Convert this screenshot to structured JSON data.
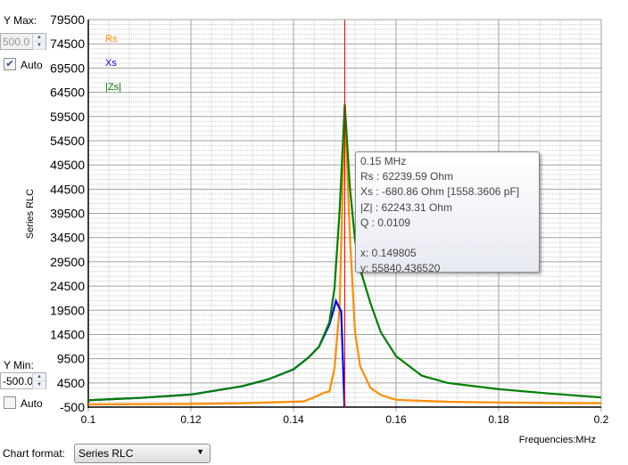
{
  "controls": {
    "ymax_label": "Y Max:",
    "ymax_value": "500.0",
    "ymax_auto_label": "Auto",
    "ymax_auto_checked": true,
    "ymin_label": "Y Min:",
    "ymin_value": "-500.0",
    "ymin_auto_label": "Auto",
    "ymin_auto_checked": false,
    "chart_format_label": "Chart format:",
    "chart_format_value": "Series RLC"
  },
  "tooltip": {
    "freq": "0.15 MHz",
    "rs": "Rs :  62239.59 Ohm",
    "xs": "Xs :  -680.86 Ohm [1558.3606 pF]",
    "z": "|Z| :  62243.31 Ohm",
    "q": "Q :  0.0109",
    "x": "x: 0.149805",
    "y": "y: 55840.436520"
  },
  "chart_data": {
    "type": "line",
    "ylabel": "Series RLC",
    "xlabel": "Frequencies:MHz",
    "xlim": [
      0.1,
      0.2
    ],
    "ylim": [
      -500,
      79500
    ],
    "x_ticks": [
      "0.1",
      "0.12",
      "0.14",
      "0.16",
      "0.18",
      "0.2"
    ],
    "y_ticks": [
      "79500",
      "74500",
      "69500",
      "64500",
      "59500",
      "54500",
      "49500",
      "44500",
      "39500",
      "34500",
      "29500",
      "24500",
      "19500",
      "14500",
      "9500",
      "4500",
      "-500"
    ],
    "grid": true,
    "legend_position": "top-left",
    "cursor_x": 0.15,
    "colors": {
      "Rs": "#ff8c00",
      "Xs": "#0000ff",
      "Zs": "#008000",
      "cursor": "#ff0000"
    },
    "series": [
      {
        "name": "Rs",
        "color": "#ff8c00",
        "x": [
          0.1,
          0.12,
          0.13,
          0.14,
          0.142,
          0.144,
          0.146,
          0.147,
          0.148,
          0.149,
          0.15,
          0.151,
          0.152,
          0.153,
          0.155,
          0.157,
          0.16,
          0.17,
          0.18,
          0.19,
          0.2
        ],
        "y": [
          50,
          150,
          300,
          600,
          700,
          1500,
          2500,
          2700,
          7500,
          20000,
          62000,
          35000,
          15000,
          8000,
          3500,
          2000,
          1000,
          600,
          450,
          350,
          300
        ]
      },
      {
        "name": "Xs",
        "color": "#0000ff",
        "x": [
          0.1,
          0.11,
          0.12,
          0.13,
          0.135,
          0.14,
          0.143,
          0.145,
          0.147,
          0.1483,
          0.1493,
          0.15
        ],
        "y": [
          920,
          1400,
          2100,
          3800,
          5200,
          7300,
          9800,
          12000,
          16500,
          21400,
          19200,
          -2000
        ]
      },
      {
        "name": "|Zs|",
        "color": "#008000",
        "x": [
          0.1,
          0.11,
          0.12,
          0.13,
          0.135,
          0.14,
          0.143,
          0.145,
          0.147,
          0.148,
          0.149,
          0.15,
          0.151,
          0.152,
          0.153,
          0.155,
          0.157,
          0.16,
          0.165,
          0.17,
          0.18,
          0.19,
          0.2
        ],
        "y": [
          920,
          1400,
          2100,
          3800,
          5200,
          7300,
          9800,
          12000,
          17000,
          24000,
          40000,
          62000,
          45000,
          34000,
          28000,
          21000,
          15000,
          10000,
          6000,
          4500,
          3200,
          2300,
          1500
        ]
      }
    ]
  }
}
